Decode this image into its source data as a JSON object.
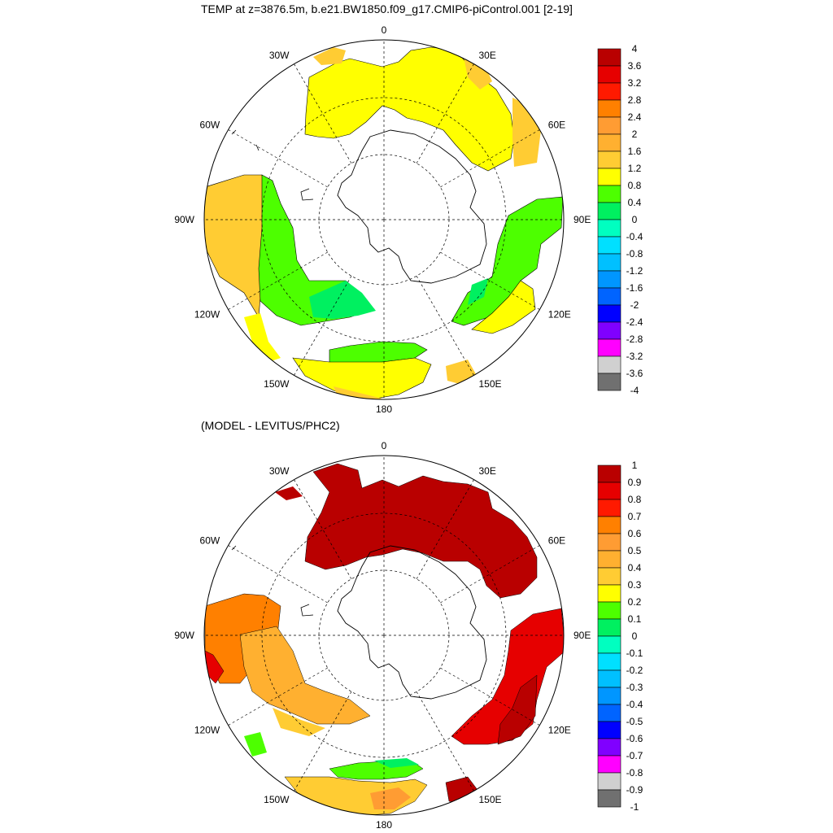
{
  "panels": [
    {
      "id": "top",
      "title": "TEMP at z=3876.5m, b.e21.BW1850.f09_g17.CMIP6-piControl.001 [2-19]",
      "lon_labels": [
        "0",
        "30E",
        "60E",
        "90E",
        "120E",
        "150E",
        "180",
        "150W",
        "120W",
        "90W",
        "60W",
        "30W"
      ],
      "colorbar": {
        "labels": [
          "4",
          "3.6",
          "3.2",
          "2.8",
          "2.4",
          "2",
          "1.6",
          "1.2",
          "0.8",
          "0.4",
          "0",
          "-0.4",
          "-0.8",
          "-1.2",
          "-1.6",
          "-2",
          "-2.4",
          "-2.8",
          "-3.2",
          "-3.6",
          "-4"
        ]
      }
    },
    {
      "id": "bottom",
      "title": "(MODEL - LEVITUS/PHC2)",
      "lon_labels": [
        "0",
        "30E",
        "60E",
        "90E",
        "120E",
        "150E",
        "180",
        "150W",
        "120W",
        "90W",
        "60W",
        "30W"
      ],
      "colorbar": {
        "labels": [
          "1",
          "0.9",
          "0.8",
          "0.7",
          "0.6",
          "0.5",
          "0.4",
          "0.3",
          "0.2",
          "0.1",
          "0",
          "-0.1",
          "-0.2",
          "-0.3",
          "-0.4",
          "-0.5",
          "-0.6",
          "-0.7",
          "-0.8",
          "-0.9",
          "-1"
        ]
      }
    }
  ],
  "palette": [
    "#b90000",
    "#e60000",
    "#ff1a00",
    "#ff8000",
    "#ff9c33",
    "#ffb030",
    "#ffcc33",
    "#ffff00",
    "#4dff00",
    "#00f060",
    "#00ffc0",
    "#00e0ff",
    "#00c0ff",
    "#0096ff",
    "#0064ff",
    "#0000ff",
    "#8000ff",
    "#ff00ff",
    "#d0d0d0",
    "#707070"
  ]
}
